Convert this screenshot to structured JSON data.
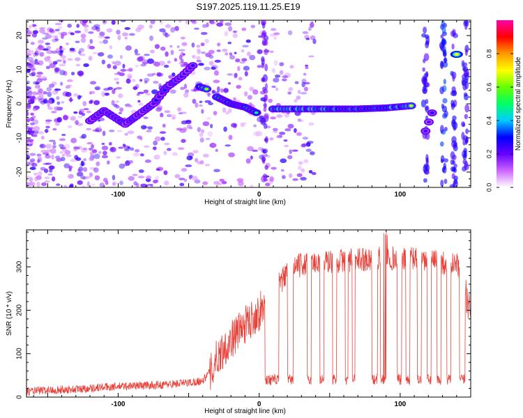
{
  "figure": {
    "title": "S197.2025.119.11.25.E19"
  },
  "chart_data": [
    {
      "type": "heatmap",
      "xlabel": "Height of straight line (km)",
      "ylabel": "Frequency (Hz)",
      "xlim": [
        -165,
        150
      ],
      "ylim": [
        -24.5,
        24.5
      ],
      "xticks": [
        -100,
        0,
        100
      ],
      "yticks": [
        -20,
        -10,
        0,
        10,
        20
      ],
      "colorbar": {
        "label": "Normalized spectral amplitude",
        "range": [
          0,
          1
        ],
        "ticks": [
          "0.0",
          "0.2",
          "0.4",
          "0.6",
          "0.8"
        ],
        "tick_values": [
          0,
          0.2,
          0.4,
          0.6,
          0.8
        ],
        "colormap": [
          "#ffffff",
          "#cc66ff",
          "#6600ff",
          "#0000ff",
          "#00ccff",
          "#00ff66",
          "#66ff00",
          "#ffff00",
          "#ff9900",
          "#ff0000",
          "#ff00aa"
        ]
      },
      "features": [
        {
          "name": "rising track",
          "points": [
            [
              -120,
              -5
            ],
            [
              -110,
              -2
            ],
            [
              -95,
              -6
            ],
            [
              -85,
              -3
            ],
            [
              -75,
              0
            ],
            [
              -65,
              5
            ],
            [
              -55,
              8
            ],
            [
              -45,
              12
            ]
          ],
          "amplitude": 0.35
        },
        {
          "name": "peak",
          "points": [
            [
              -42,
              5
            ],
            [
              -35,
              4
            ]
          ],
          "amplitude": 0.65
        },
        {
          "name": "descending track",
          "points": [
            [
              -30,
              2
            ],
            [
              -20,
              0
            ],
            [
              -10,
              -1
            ],
            [
              0,
              -3
            ]
          ],
          "amplitude": 0.6
        },
        {
          "name": "flat track",
          "points": [
            [
              10,
              -1.5
            ],
            [
              30,
              -1.5
            ],
            [
              50,
              -1.5
            ],
            [
              70,
              -1.5
            ],
            [
              90,
              -1.2
            ],
            [
              110,
              -0.5
            ]
          ],
          "amplitude": 0.75
        },
        {
          "name": "tail",
          "points": [
            [
              118,
              -8
            ],
            [
              125,
              0
            ]
          ],
          "amplitude": 0.3
        },
        {
          "name": "upper patch",
          "points": [
            [
              140,
              14.5
            ]
          ],
          "amplitude": 0.7
        }
      ]
    },
    {
      "type": "line",
      "xlabel": "Height of straight line (km)",
      "ylabel": "SNR (10 * v/v)",
      "xlim": [
        -165,
        150
      ],
      "ylim": [
        0,
        385
      ],
      "xticks": [
        -100,
        0,
        100
      ],
      "yticks": [
        0,
        100,
        200,
        300
      ],
      "series": [
        {
          "color": "#e8413a",
          "x": [
            -165,
            -150,
            -130,
            -110,
            -90,
            -70,
            -50,
            -40,
            -35,
            -30,
            -25,
            -20,
            -15,
            -10,
            -5,
            0,
            5,
            10,
            15,
            20,
            25,
            30,
            40,
            50,
            60,
            70,
            80,
            90,
            100,
            110,
            120,
            130,
            140,
            145,
            150
          ],
          "values": [
            15,
            18,
            20,
            25,
            28,
            30,
            35,
            40,
            60,
            100,
            120,
            140,
            160,
            175,
            190,
            205,
            225,
            245,
            270,
            290,
            305,
            310,
            315,
            318,
            320,
            322,
            325,
            330,
            320,
            325,
            320,
            315,
            310,
            280,
            200
          ]
        }
      ],
      "dropouts": [
        [
          4,
          14
        ],
        [
          20,
          24
        ],
        [
          34,
          37
        ],
        [
          43,
          46
        ],
        [
          52,
          55
        ],
        [
          61,
          63
        ],
        [
          66,
          68
        ],
        [
          80,
          84
        ],
        [
          86,
          90
        ],
        [
          98,
          101
        ],
        [
          104,
          107
        ],
        [
          112,
          115
        ],
        [
          119,
          122
        ],
        [
          126,
          129
        ],
        [
          133,
          136
        ],
        [
          142,
          146
        ]
      ],
      "dropout_level": 40
    }
  ]
}
